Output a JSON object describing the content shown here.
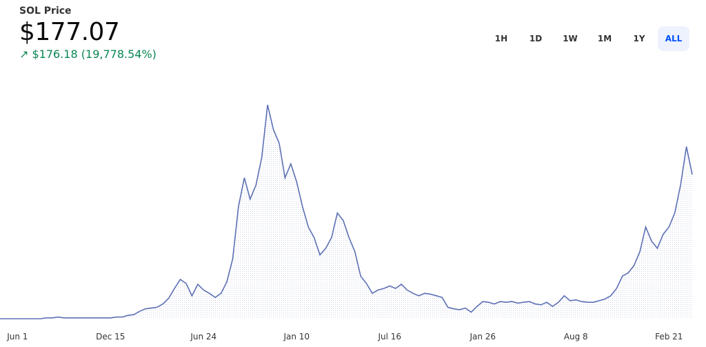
{
  "header": {
    "title": "SOL Price",
    "price": "$177.07",
    "change": "$176.18",
    "change_pct": "(19,778.54%)"
  },
  "ranges": [
    "1H",
    "1D",
    "1W",
    "1M",
    "1Y",
    "ALL"
  ],
  "selected_range": 5,
  "chart_data": {
    "type": "line",
    "color": "#5b6fb4",
    "categories": [
      null,
      null,
      null,
      "Jun 1",
      null,
      null,
      null,
      null,
      null,
      null,
      null,
      null,
      null,
      null,
      null,
      null,
      null,
      null,
      null,
      "Dec 15",
      null,
      null,
      null,
      null,
      null,
      null,
      null,
      null,
      null,
      null,
      null,
      null,
      null,
      null,
      null,
      "Jun 24",
      null,
      null,
      null,
      null,
      null,
      null,
      null,
      null,
      null,
      null,
      null,
      null,
      null,
      null,
      null,
      "Jan 10",
      null,
      null,
      null,
      null,
      null,
      null,
      null,
      null,
      null,
      null,
      null,
      null,
      null,
      null,
      null,
      "Jul 16",
      null,
      null,
      null,
      null,
      null,
      null,
      null,
      null,
      null,
      null,
      null,
      null,
      null,
      null,
      null,
      "Jan 26",
      null,
      null,
      null,
      null,
      null,
      null,
      null,
      null,
      null,
      null,
      null,
      null,
      null,
      null,
      null,
      "Aug 8",
      null,
      null,
      null,
      null,
      null,
      null,
      null,
      null,
      null,
      null,
      null,
      null,
      null,
      null,
      null,
      "Feb 21",
      null,
      null,
      null,
      null
    ],
    "values": [
      1,
      1,
      1,
      1,
      1,
      1,
      1,
      1,
      2,
      2,
      3,
      2,
      2,
      2,
      2,
      2,
      2,
      2,
      2,
      2,
      3,
      3,
      5,
      6,
      10,
      13,
      14,
      15,
      19,
      26,
      38,
      49,
      44,
      29,
      43,
      36,
      32,
      27,
      32,
      46,
      74,
      138,
      173,
      147,
      164,
      198,
      262,
      232,
      215,
      173,
      190,
      168,
      138,
      113,
      100,
      79,
      87,
      100,
      130,
      121,
      100,
      83,
      53,
      44,
      32,
      36,
      38,
      41,
      38,
      43,
      36,
      32,
      29,
      32,
      31,
      29,
      27,
      15,
      13,
      12,
      14,
      9,
      16,
      22,
      21,
      19,
      22,
      21,
      22,
      20,
      21,
      22,
      19,
      18,
      21,
      16,
      21,
      29,
      23,
      24,
      22,
      21,
      21,
      23,
      25,
      29,
      38,
      53,
      57,
      66,
      83,
      113,
      96,
      87,
      104,
      113,
      130,
      164,
      211,
      177.07
    ]
  }
}
